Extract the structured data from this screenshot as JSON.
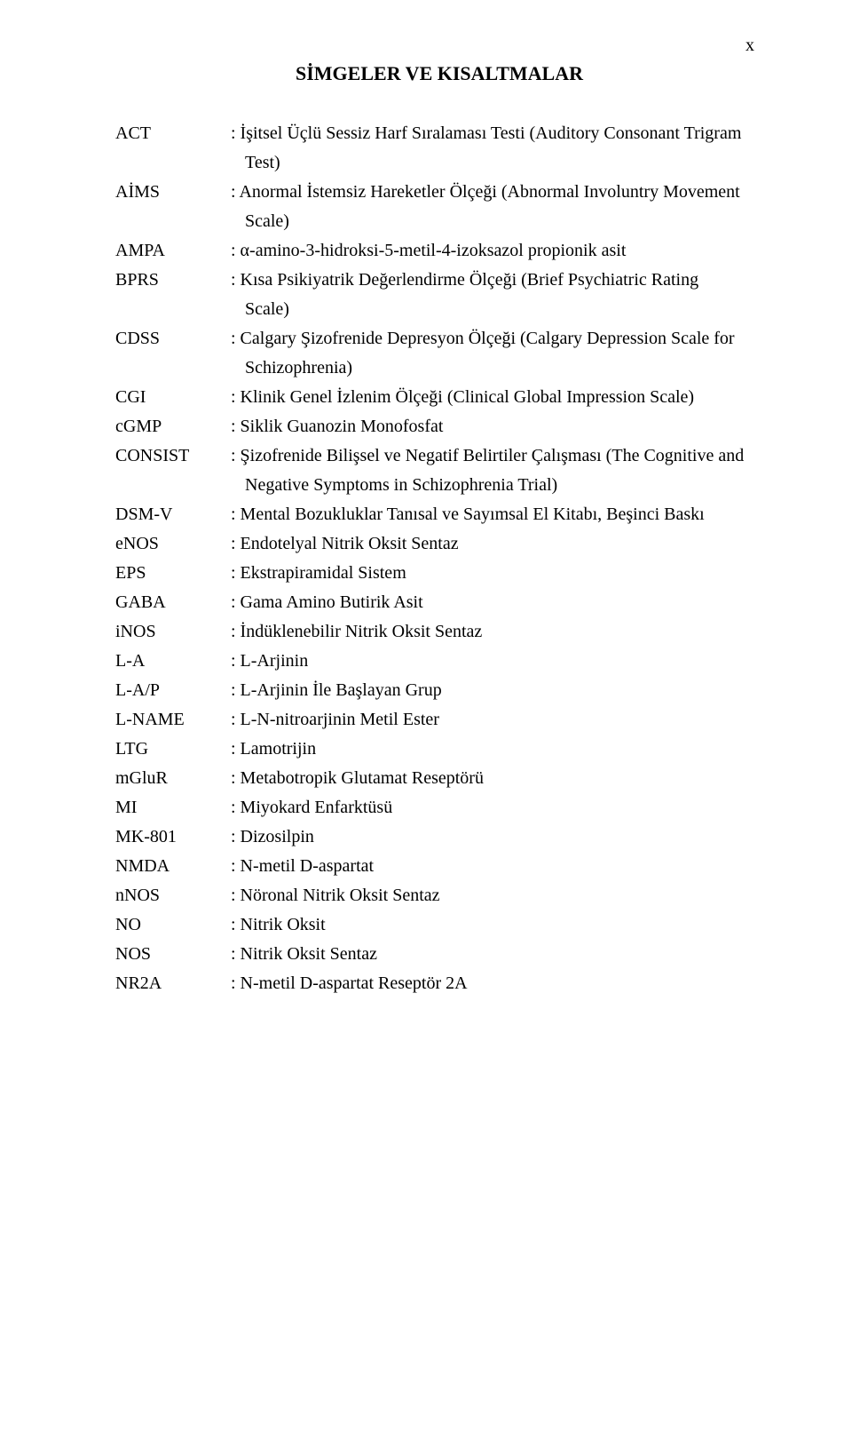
{
  "page_marker": "x",
  "title": "SİMGELER VE KISALTMALAR",
  "entries": [
    {
      "abbr": "ACT",
      "desc": ": İşitsel Üçlü Sessiz Harf Sıralaması Testi (Auditory Consonant Trigram",
      "cont": [
        "Test)"
      ]
    },
    {
      "abbr": "AİMS",
      "desc": ": Anormal İstemsiz Hareketler Ölçeği (Abnormal Involuntry Movement",
      "cont": [
        "Scale)"
      ]
    },
    {
      "abbr": "AMPA",
      "desc": ": α-amino-3-hidroksi-5-metil-4-izoksazol propionik asit"
    },
    {
      "abbr": "BPRS",
      "desc": ": Kısa Psikiyatrik Değerlendirme Ölçeği (Brief Psychiatric Rating",
      "cont": [
        "Scale)"
      ]
    },
    {
      "abbr": "CDSS",
      "desc": ": Calgary Şizofrenide Depresyon Ölçeği (Calgary Depression Scale for",
      "cont": [
        "Schizophrenia)"
      ]
    },
    {
      "abbr": "CGI",
      "desc": ": Klinik Genel İzlenim Ölçeği (Clinical Global Impression Scale)"
    },
    {
      "abbr": "cGMP",
      "desc": ": Siklik Guanozin Monofosfat"
    },
    {
      "abbr": "CONSIST",
      "desc": ": Şizofrenide Bilişsel ve Negatif Belirtiler Çalışması (The Cognitive and",
      "cont": [
        "Negative Symptoms in Schizophrenia Trial)"
      ]
    },
    {
      "abbr": "DSM-V",
      "desc": ": Mental Bozukluklar Tanısal ve Sayımsal El Kitabı, Beşinci Baskı"
    },
    {
      "abbr": "eNOS",
      "desc": ": Endotelyal Nitrik Oksit Sentaz"
    },
    {
      "abbr": "EPS",
      "desc": ": Ekstrapiramidal Sistem"
    },
    {
      "abbr": "GABA",
      "desc": ": Gama Amino Butirik Asit"
    },
    {
      "abbr": "iNOS",
      "desc": ": İndüklenebilir Nitrik Oksit Sentaz"
    },
    {
      "abbr": "L-A",
      "desc": ": L-Arjinin"
    },
    {
      "abbr": "L-A/P",
      "desc": ": L-Arjinin İle Başlayan Grup"
    },
    {
      "abbr": "L-NAME",
      "desc": ": L-N-nitroarjinin Metil Ester"
    },
    {
      "abbr": "LTG",
      "desc": ": Lamotrijin"
    },
    {
      "abbr": "mGluR",
      "desc": ": Metabotropik Glutamat Reseptörü"
    },
    {
      "abbr": "MI",
      "desc": ": Miyokard Enfarktüsü"
    },
    {
      "abbr": "MK-801",
      "desc": " : Dizosilpin"
    },
    {
      "abbr": "NMDA",
      "desc": ": N-metil D-aspartat"
    },
    {
      "abbr": "nNOS",
      "desc": ": Nöronal Nitrik Oksit Sentaz"
    },
    {
      "abbr": "NO",
      "desc": ": Nitrik Oksit"
    },
    {
      "abbr": "NOS",
      "desc": ": Nitrik Oksit Sentaz"
    },
    {
      "abbr": "NR2A",
      "desc": ": N-metil D-aspartat Reseptör 2A"
    }
  ]
}
